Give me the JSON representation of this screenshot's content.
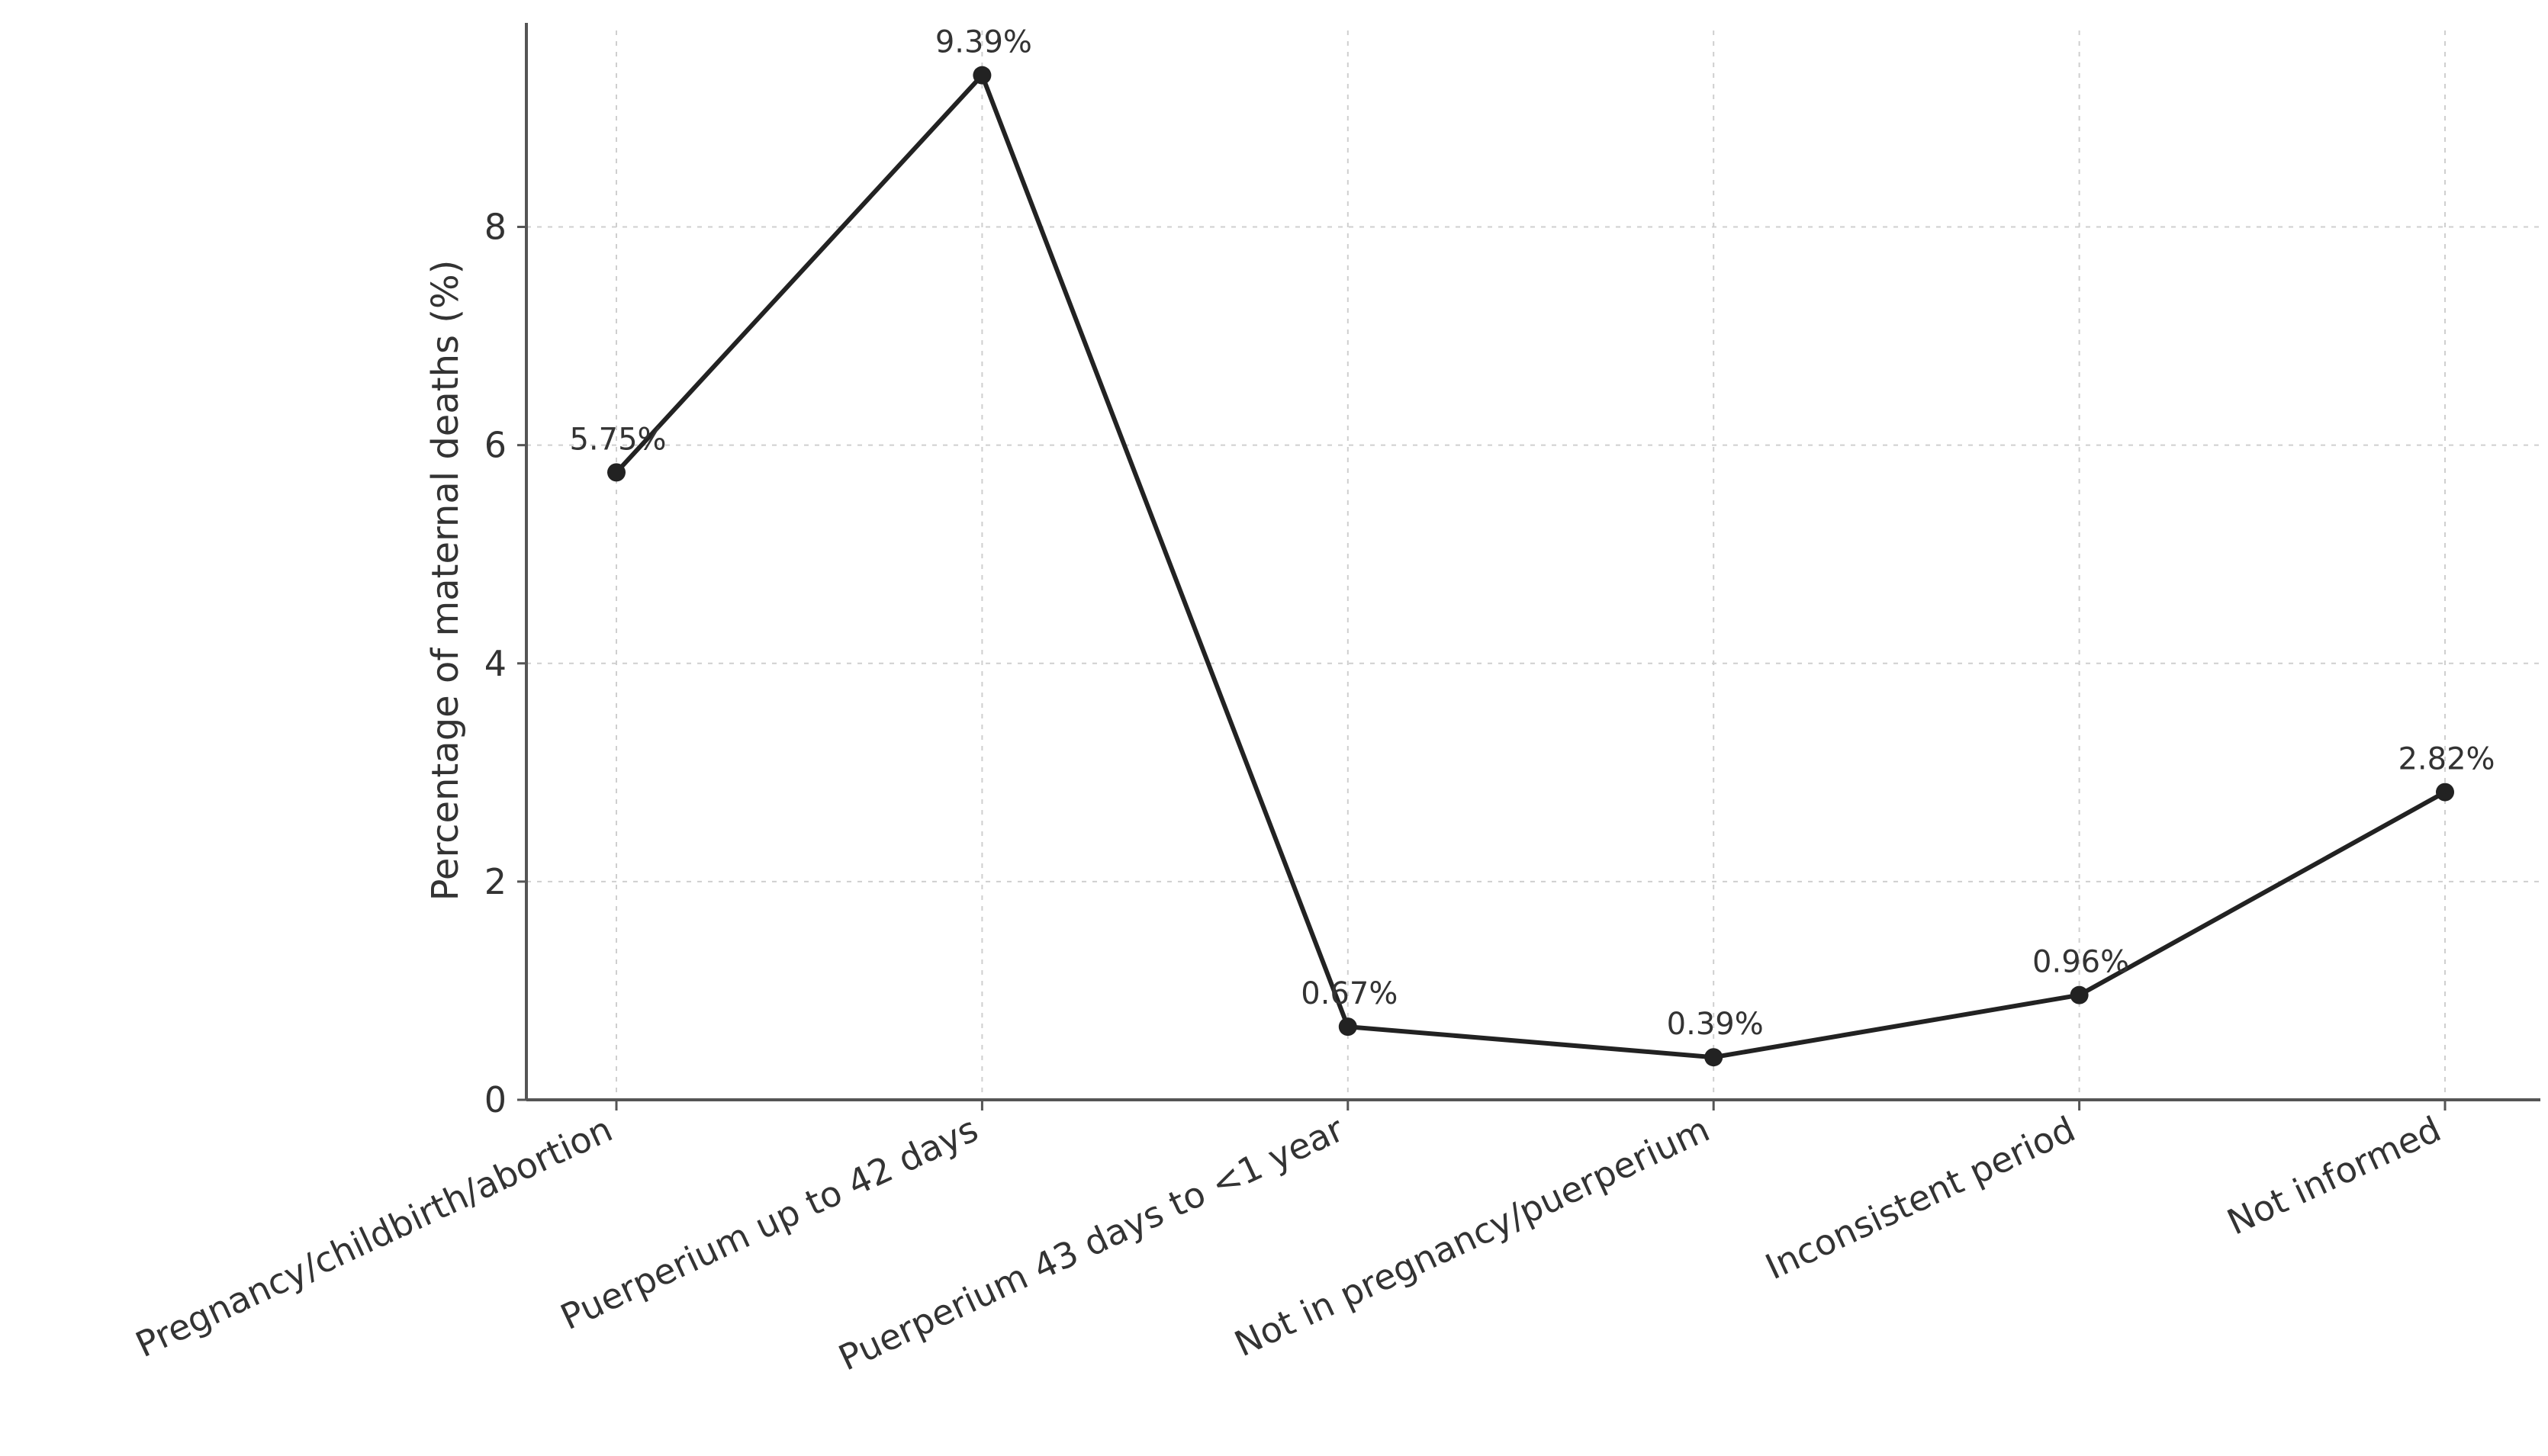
{
  "chart_data": {
    "type": "line",
    "title": "",
    "xlabel": "",
    "ylabel": "Percentage of maternal deaths (%)",
    "categories": [
      "Pregnancy/childbirth/abortion",
      "Puerperium up to 42 days",
      "Puerperium 43 days to <1 year",
      "Not in pregnancy/puerperium",
      "Inconsistent period",
      "Not informed"
    ],
    "series": [
      {
        "values": [
          5.75,
          9.39,
          0.67,
          0.39,
          0.96,
          2.82
        ]
      }
    ],
    "data_labels": [
      "5.75%",
      "9.39%",
      "0.67%",
      "0.39%",
      "0.96%",
      "2.82%"
    ],
    "ylim": [
      0,
      9.8
    ],
    "yticks": [
      0,
      2,
      4,
      6,
      8
    ],
    "grid": true,
    "legend": "none",
    "colors": {
      "line": "#222222",
      "grid": "#cfcfcf",
      "axis": "#555555",
      "text": "#333333"
    }
  }
}
